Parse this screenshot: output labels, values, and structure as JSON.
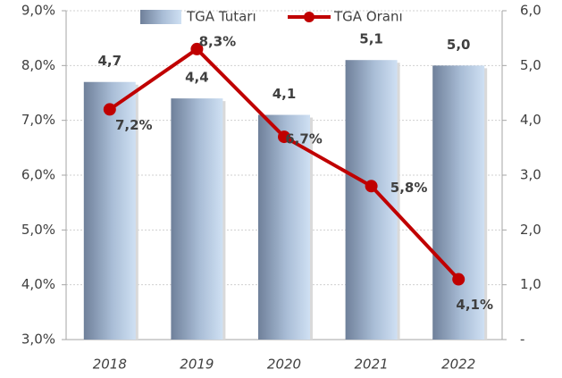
{
  "chart_data": {
    "type": "bar",
    "categories": [
      "2018",
      "2019",
      "2020",
      "2021",
      "2022"
    ],
    "series": [
      {
        "name": "TGA Tutarı",
        "type": "bar",
        "axis": "y2",
        "color": "#8fa3bd",
        "values": [
          4.7,
          4.4,
          4.1,
          5.1,
          5.0
        ],
        "value_labels": [
          "4,7",
          "4,4",
          "4,1",
          "5,1",
          "5,0"
        ]
      },
      {
        "name": "TGA Oranı",
        "type": "line",
        "color": "#c00000",
        "values": [
          7.2,
          8.3,
          6.7,
          5.8,
          4.1
        ],
        "value_labels": [
          "7,2%",
          "8,3%",
          "6,7%",
          "5,8%",
          "4,1%"
        ]
      }
    ],
    "ylim": [
      3,
      9
    ],
    "yticks": [
      {
        "value": 3,
        "label": "3,0%"
      },
      {
        "value": 4,
        "label": "4,0%"
      },
      {
        "value": 5,
        "label": "5,0%"
      },
      {
        "value": 6,
        "label": "6,0%"
      },
      {
        "value": 7,
        "label": "7,0%"
      },
      {
        "value": 8,
        "label": "8,0%"
      },
      {
        "value": 9,
        "label": "9,0%"
      }
    ],
    "y2lim": [
      0,
      6
    ],
    "y2ticks": [
      {
        "value": 0,
        "label": "-"
      },
      {
        "value": 1,
        "label": "1,0"
      },
      {
        "value": 2,
        "label": "2,0"
      },
      {
        "value": 3,
        "label": "3,0"
      },
      {
        "value": 4,
        "label": "4,0"
      },
      {
        "value": 5,
        "label": "5,0"
      },
      {
        "value": 6,
        "label": "6,0"
      }
    ],
    "grid": true,
    "legend": "top"
  }
}
